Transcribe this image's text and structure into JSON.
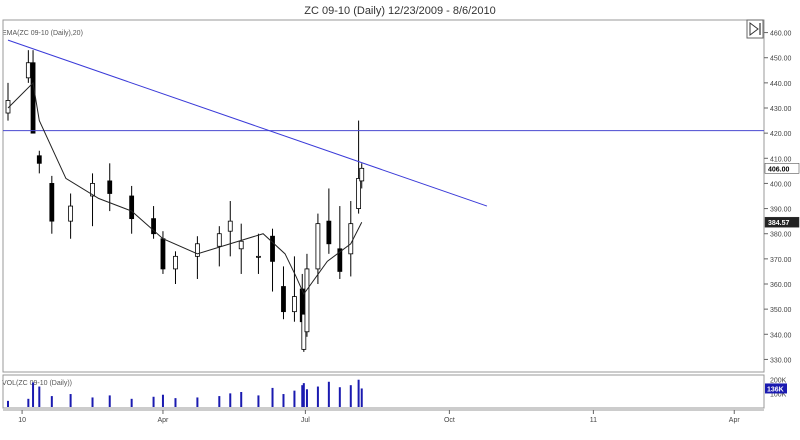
{
  "chart_data": [
    {
      "type": "candlestick",
      "title": "ZC 09-10 (Daily)  12/23/2009 - 8/6/2010",
      "indicator_label": "EMA(ZC 09-10 (Daily),20)",
      "ylim": [
        325,
        465
      ],
      "y_ticks": [
        "460.00",
        "450.00",
        "440.00",
        "430.00",
        "420.00",
        "410.00",
        "400.00",
        "390.00",
        "380.00",
        "370.00",
        "360.00",
        "350.00",
        "340.00",
        "330.00"
      ],
      "x_tick_labels": [
        "10",
        "Apr",
        "Jul",
        "Oct",
        "11",
        "Apr"
      ],
      "last_price": "406.00",
      "ema_last": "384.57",
      "horizontal_line_value": 421,
      "trendline": {
        "x": [
          "2009-12-23",
          "2010-10-25"
        ],
        "y": [
          457,
          391
        ]
      },
      "ema_line": {
        "x": [
          "2009-12-23",
          "2010-01-08",
          "2010-01-12",
          "2010-01-29",
          "2010-02-19",
          "2010-03-12",
          "2010-04-01",
          "2010-04-23",
          "2010-05-14",
          "2010-06-04",
          "2010-06-18",
          "2010-06-25",
          "2010-06-30",
          "2010-07-15",
          "2010-07-30",
          "2010-08-06"
        ],
        "y": [
          430,
          440,
          425,
          402,
          394,
          389,
          378,
          372,
          376,
          380,
          372,
          363,
          356,
          369,
          376,
          384.57
        ]
      },
      "series": [
        {
          "name": "",
          "x": [
            "2009-12-23",
            "2010-01-05",
            "2010-01-08",
            "2010-01-12",
            "2010-01-20",
            "2010-02-01",
            "2010-02-15",
            "2010-02-26",
            "2010-03-12",
            "2010-03-26",
            "2010-04-01",
            "2010-04-09",
            "2010-04-23",
            "2010-05-07",
            "2010-05-14",
            "2010-05-21",
            "2010-06-01",
            "2010-06-10",
            "2010-06-17",
            "2010-06-24",
            "2010-06-29",
            "2010-06-30",
            "2010-07-02",
            "2010-07-09",
            "2010-07-16",
            "2010-07-23",
            "2010-07-30",
            "2010-08-04",
            "2010-08-06"
          ],
          "open": [
            428,
            442,
            448,
            411,
            400,
            385,
            395,
            401,
            395,
            386,
            378,
            366,
            371,
            375,
            381,
            374,
            371,
            379,
            359,
            349,
            358,
            334,
            341,
            366,
            385,
            374,
            372,
            390,
            401
          ],
          "high": [
            440,
            453,
            453,
            413,
            403,
            396,
            404,
            408,
            399,
            391,
            381,
            373,
            379,
            383,
            393,
            384,
            380,
            382,
            367,
            371,
            364,
            348,
            372,
            388,
            398,
            391,
            393,
            425,
            408
          ],
          "low": [
            425,
            440,
            420,
            404,
            380,
            378,
            383,
            389,
            380,
            378,
            364,
            360,
            362,
            367,
            371,
            364,
            364,
            357,
            346,
            345,
            341,
            333,
            339,
            360,
            372,
            362,
            363,
            388,
            398
          ],
          "close": [
            433,
            448,
            420,
            408,
            385,
            391,
            400,
            396,
            386,
            380,
            366,
            371,
            376,
            380,
            385,
            377,
            371,
            369,
            349,
            355,
            345,
            348,
            366,
            384,
            376,
            365,
            384,
            402,
            406
          ]
        }
      ],
      "volume": {
        "label": "VOL(ZC 09-10 (Daily))",
        "ticks": [
          "200K",
          "100K"
        ],
        "last": "136K",
        "values": [
          45,
          60,
          180,
          150,
          80,
          95,
          70,
          85,
          60,
          75,
          90,
          65,
          70,
          80,
          100,
          110,
          85,
          140,
          95,
          120,
          160,
          175,
          130,
          150,
          185,
          145,
          160,
          200,
          136
        ]
      }
    }
  ]
}
